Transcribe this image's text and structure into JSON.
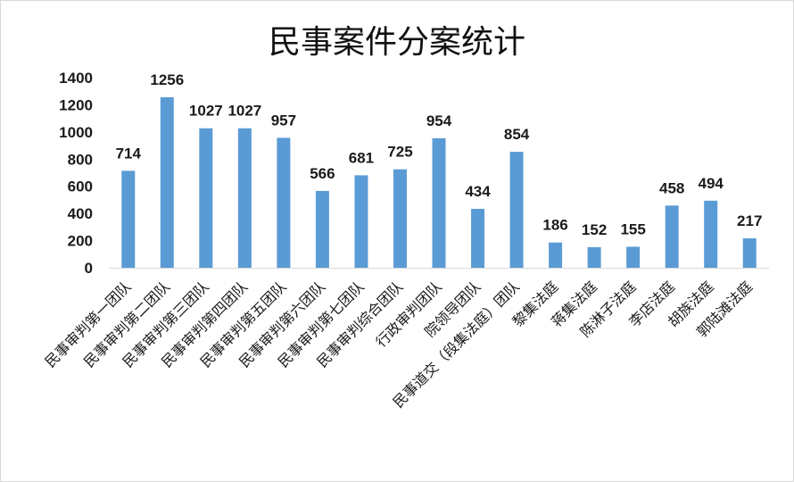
{
  "chart_data": {
    "type": "bar",
    "title": "民事案件分案统计",
    "categories": [
      "民事审判第一团队",
      "民事审判第二团队",
      "民事审判第三团队",
      "民事审判第四团队",
      "民事审判第五团队",
      "民事审判第六团队",
      "民事审判第七团队",
      "民事审判综合团队",
      "行政审判团队",
      "院领导团队",
      "民事道交（段集法庭）团队",
      "黎集法庭",
      "蒋集法庭",
      "陈淋子法庭",
      "李店法庭",
      "胡族法庭",
      "郭陆滩法庭"
    ],
    "values": [
      714,
      1256,
      1027,
      1027,
      957,
      566,
      681,
      725,
      954,
      434,
      854,
      186,
      152,
      155,
      458,
      494,
      217
    ],
    "ylim": [
      0,
      1400
    ],
    "yticks": [
      0,
      200,
      400,
      600,
      800,
      1000,
      1200,
      1400
    ],
    "grid": false,
    "bar_color": "#5b9bd5",
    "axis_color": "#d9d9d9"
  }
}
